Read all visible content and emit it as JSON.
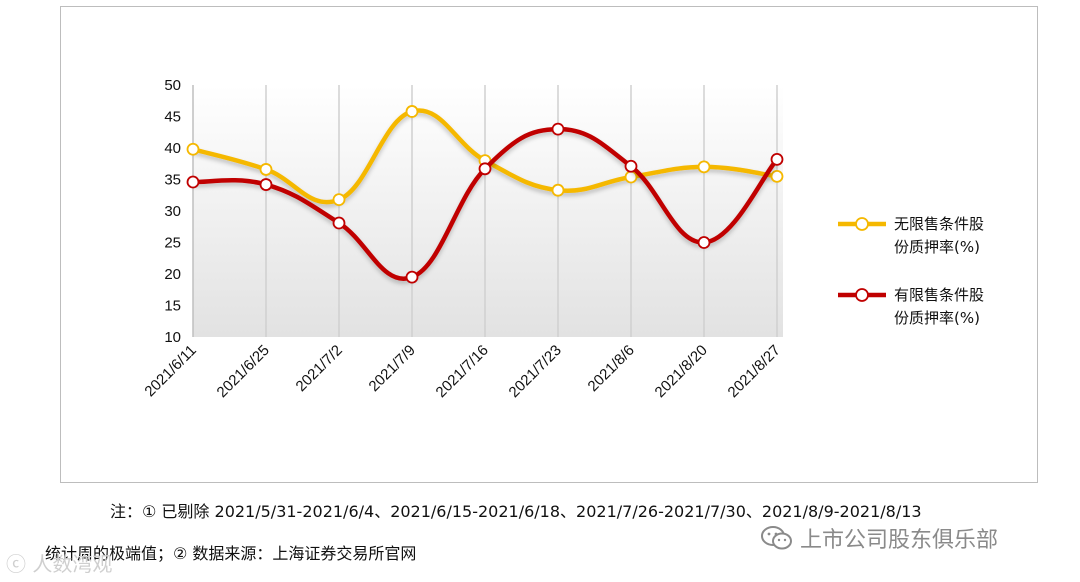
{
  "chart_data": {
    "type": "line",
    "title": "",
    "xlabel": "",
    "ylabel": "",
    "categories": [
      "2021/6/11",
      "2021/6/25",
      "2021/7/2",
      "2021/7/9",
      "2021/7/16",
      "2021/7/23",
      "2021/8/6",
      "2021/8/20",
      "2021/8/27"
    ],
    "ylim": [
      10,
      50
    ],
    "yticks": [
      10,
      15,
      20,
      25,
      30,
      35,
      40,
      45,
      50
    ],
    "grid": "vertical",
    "legend_position": "right",
    "series": [
      {
        "name_line1": "无限售条件股",
        "name_line2": "份质押率(%)",
        "color": "#F5B800",
        "values": [
          39.8,
          36.6,
          31.8,
          45.8,
          38.0,
          33.3,
          35.4,
          37.0,
          35.5
        ]
      },
      {
        "name_line1": "有限售条件股",
        "name_line2": "份质押率(%)",
        "color": "#C00000",
        "values": [
          34.6,
          34.2,
          28.1,
          19.5,
          36.7,
          43.0,
          37.1,
          25.0,
          38.2
        ]
      }
    ]
  },
  "note": {
    "line1": "注：①  已剔除 2021/5/31-2021/6/4、2021/6/15-2021/6/18、2021/7/26-2021/7/30、2021/8/9-2021/8/13",
    "line2": "统计周的极端值；②  数据来源：上海证券交易所官网"
  },
  "watermarks": {
    "right": "上市公司股东俱乐部",
    "left": "ⓒ 人数湾观"
  }
}
